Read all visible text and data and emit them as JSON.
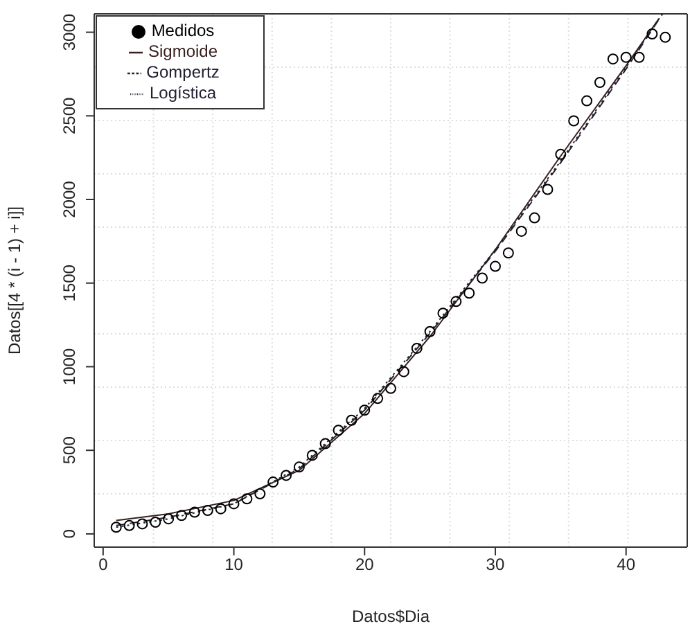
{
  "chart_data": {
    "type": "line",
    "xlabel": "Datos$Dia",
    "ylabel": "Datos[[4 * (i - 1) + i]]",
    "xlim": [
      -0.68,
      44.68
    ],
    "ylim": [
      -79,
      3110
    ],
    "xticks": [
      0,
      10,
      20,
      30,
      40
    ],
    "yticks": [
      0,
      500,
      1000,
      1500,
      2000,
      2500,
      3000
    ],
    "grid": true,
    "legend": "top left",
    "series": [
      {
        "name": "Medidos",
        "type": "scatter",
        "marker": "circle",
        "color": "#000000",
        "x": [
          1,
          2,
          3,
          4,
          5,
          6,
          7,
          8,
          9,
          10,
          11,
          12,
          13,
          14,
          15,
          16,
          17,
          18,
          19,
          20,
          21,
          22,
          23,
          24,
          25,
          26,
          27,
          28,
          29,
          30,
          31,
          32,
          33,
          34,
          35,
          36,
          37,
          38,
          39,
          40,
          41,
          42,
          43
        ],
        "values": [
          40,
          50,
          60,
          70,
          90,
          110,
          130,
          140,
          150,
          180,
          210,
          240,
          310,
          350,
          400,
          470,
          540,
          620,
          680,
          740,
          810,
          870,
          970,
          1110,
          1210,
          1320,
          1390,
          1440,
          1530,
          1600,
          1680,
          1810,
          1890,
          2060,
          2270,
          2470,
          2590,
          2700,
          2840,
          2850,
          2850,
          2990,
          2970
        ]
      },
      {
        "name": "Sigmoide",
        "line_style": "solid",
        "color": "#3a2020",
        "x": [
          1,
          5,
          10,
          15,
          20,
          25,
          30,
          35,
          40,
          42.5
        ],
        "values": [
          80,
          120,
          200,
          380,
          720,
          1180,
          1700,
          2260,
          2800,
          3080
        ]
      },
      {
        "name": "Gompertz",
        "line_style": "dashed",
        "color": "#202030",
        "x": [
          1,
          5,
          10,
          15,
          20,
          25,
          30,
          35,
          40,
          42.8
        ],
        "values": [
          50,
          100,
          180,
          390,
          740,
          1200,
          1690,
          2220,
          2780,
          3110
        ]
      },
      {
        "name": "Logística",
        "line_style": "dotted",
        "color": "#202030",
        "x": [
          1,
          5,
          10,
          15,
          20,
          25,
          30,
          35,
          40,
          42.6
        ],
        "values": [
          40,
          90,
          180,
          400,
          750,
          1210,
          1700,
          2230,
          2790,
          3090
        ]
      }
    ]
  }
}
